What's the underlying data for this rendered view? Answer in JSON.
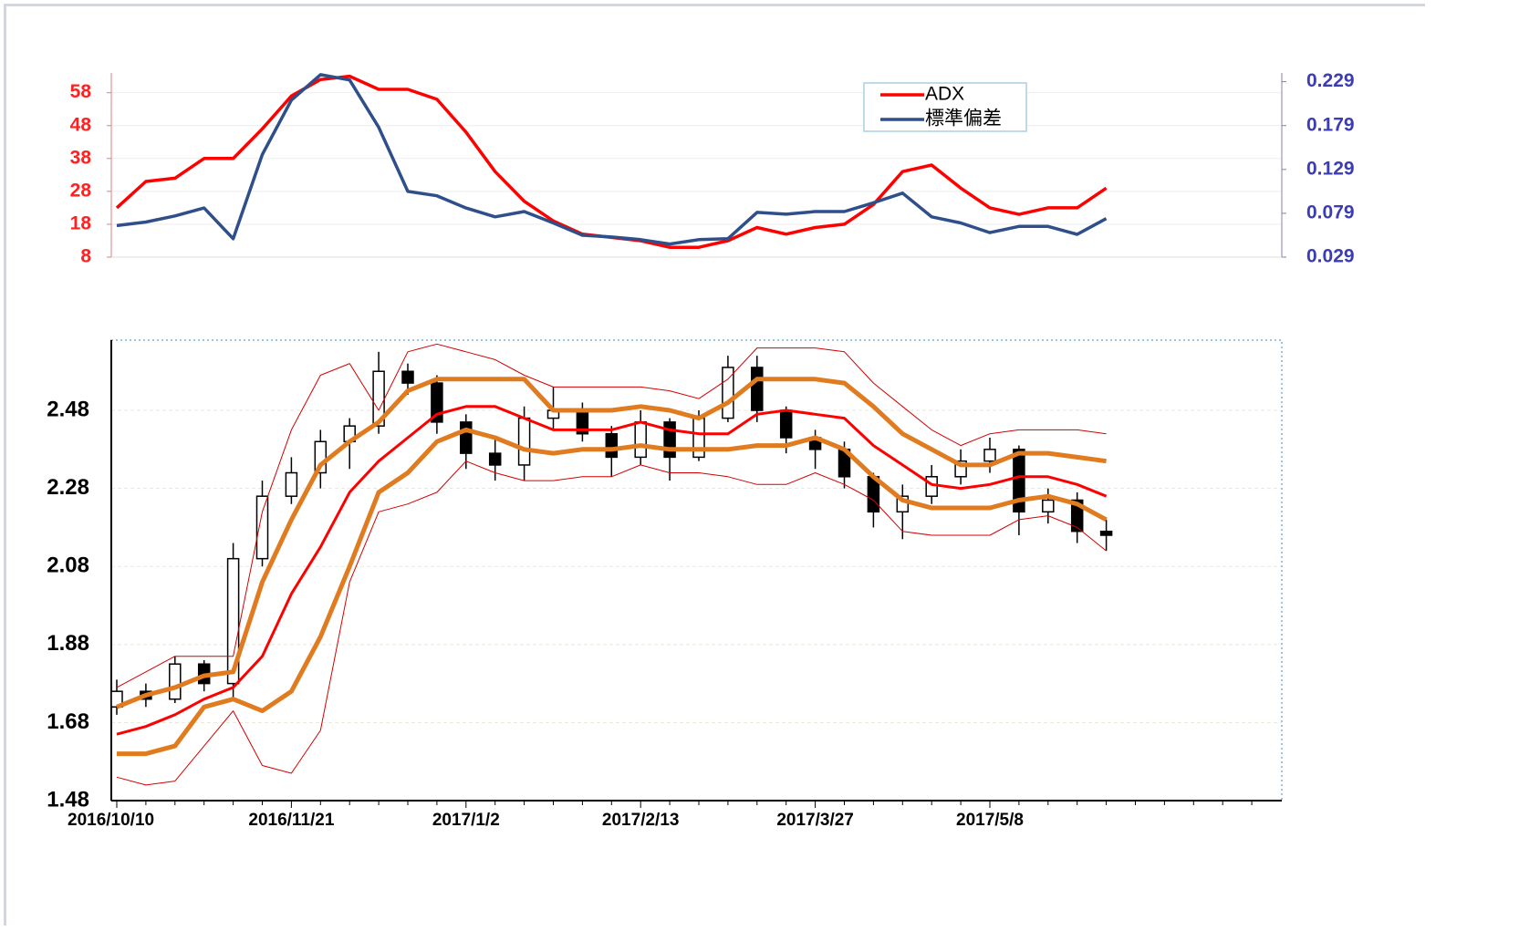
{
  "chart_data": [
    {
      "type": "line",
      "series": [
        {
          "name": "ADX",
          "color": "#ff0000",
          "axis": "y",
          "values": [
            23,
            31,
            32,
            38,
            38,
            47,
            57,
            62,
            63,
            59,
            59,
            56,
            46,
            34,
            25,
            19,
            15,
            14,
            13,
            11,
            11,
            13,
            17,
            15,
            17,
            18,
            24,
            34,
            36,
            29,
            23,
            21,
            23,
            23,
            29,
            null,
            null,
            null,
            null,
            null
          ]
        },
        {
          "name": "標準偏差",
          "color": "#2f4f8a",
          "axis": "y2",
          "values": [
            0.065,
            0.069,
            0.076,
            0.085,
            0.05,
            0.146,
            0.208,
            0.237,
            0.231,
            0.177,
            0.104,
            0.099,
            0.085,
            0.075,
            0.081,
            0.068,
            0.054,
            0.052,
            0.049,
            0.044,
            0.049,
            0.05,
            0.08,
            0.078,
            0.081,
            0.081,
            0.091,
            0.102,
            0.075,
            0.068,
            0.057,
            0.064,
            0.064,
            0.055,
            0.073,
            null,
            null,
            null,
            null,
            null
          ]
        }
      ],
      "ylim": [
        8,
        64
      ],
      "yticks": [
        8,
        18,
        28,
        38,
        48,
        58
      ],
      "y2lim": [
        0.029,
        0.239
      ],
      "y2ticks": [
        0.029,
        0.079,
        0.129,
        0.179,
        0.229
      ],
      "grid": true,
      "legend": "upper right"
    },
    {
      "type": "candlestick",
      "categories": [
        "2016/10/10",
        null,
        null,
        null,
        null,
        null,
        "2016/11/21",
        null,
        null,
        null,
        null,
        null,
        "2017/1/2",
        null,
        null,
        null,
        null,
        null,
        "2017/2/13",
        null,
        null,
        null,
        null,
        null,
        "2017/3/27",
        null,
        null,
        null,
        null,
        null,
        "2017/5/8",
        null,
        null,
        null,
        null,
        null,
        null,
        null,
        null,
        null
      ],
      "open": [
        1.72,
        1.76,
        1.74,
        1.83,
        1.78,
        2.1,
        2.26,
        2.32,
        2.4,
        2.44,
        2.58,
        2.55,
        2.45,
        2.37,
        2.34,
        2.46,
        2.48,
        2.42,
        2.36,
        2.45,
        2.36,
        2.46,
        2.59,
        2.48,
        2.41,
        2.38,
        2.31,
        2.22,
        2.26,
        2.31,
        2.35,
        2.38,
        2.22,
        2.25,
        2.17,
        null,
        null,
        null,
        null,
        null
      ],
      "high": [
        1.79,
        1.78,
        1.85,
        1.84,
        2.14,
        2.3,
        2.36,
        2.43,
        2.46,
        2.63,
        2.6,
        2.57,
        2.47,
        2.41,
        2.49,
        2.54,
        2.5,
        2.44,
        2.48,
        2.46,
        2.48,
        2.62,
        2.62,
        2.49,
        2.43,
        2.4,
        2.32,
        2.29,
        2.34,
        2.38,
        2.41,
        2.39,
        2.28,
        2.27,
        2.2,
        null,
        null,
        null,
        null,
        null
      ],
      "low": [
        1.7,
        1.72,
        1.73,
        1.76,
        1.74,
        2.08,
        2.24,
        2.28,
        2.33,
        2.42,
        2.52,
        2.42,
        2.33,
        2.3,
        2.3,
        2.43,
        2.4,
        2.31,
        2.34,
        2.3,
        2.35,
        2.45,
        2.45,
        2.37,
        2.33,
        2.28,
        2.18,
        2.15,
        2.24,
        2.29,
        2.32,
        2.16,
        2.19,
        2.14,
        2.12,
        null,
        null,
        null,
        null,
        null
      ],
      "close": [
        1.76,
        1.74,
        1.83,
        1.78,
        2.1,
        2.26,
        2.32,
        2.4,
        2.44,
        2.58,
        2.55,
        2.45,
        2.37,
        2.34,
        2.46,
        2.48,
        2.42,
        2.36,
        2.45,
        2.36,
        2.46,
        2.59,
        2.48,
        2.41,
        2.38,
        2.31,
        2.22,
        2.26,
        2.31,
        2.35,
        2.38,
        2.22,
        2.25,
        2.17,
        2.16,
        null,
        null,
        null,
        null,
        null
      ],
      "series": [
        {
          "color": "#d40000",
          "width": 1,
          "values": [
            1.77,
            1.81,
            1.85,
            1.85,
            1.85,
            2.22,
            2.43,
            2.57,
            2.6,
            2.48,
            2.63,
            2.65,
            2.63,
            2.61,
            2.57,
            2.54,
            2.54,
            2.54,
            2.54,
            2.53,
            2.51,
            2.56,
            2.64,
            2.64,
            2.64,
            2.63,
            2.55,
            2.49,
            2.43,
            2.39,
            2.42,
            2.43,
            2.43,
            2.43,
            2.42,
            null,
            null,
            null,
            null,
            null
          ]
        },
        {
          "color": "#e07b20",
          "width": 5,
          "values": [
            1.72,
            1.75,
            1.77,
            1.8,
            1.81,
            2.04,
            2.2,
            2.34,
            2.4,
            2.45,
            2.53,
            2.56,
            2.56,
            2.56,
            2.56,
            2.48,
            2.48,
            2.48,
            2.49,
            2.48,
            2.46,
            2.5,
            2.56,
            2.56,
            2.56,
            2.55,
            2.49,
            2.42,
            2.38,
            2.34,
            2.34,
            2.37,
            2.37,
            2.36,
            2.35,
            null,
            null,
            null,
            null,
            null
          ]
        },
        {
          "color": "#ff0000",
          "width": 3,
          "values": [
            1.65,
            1.67,
            1.7,
            1.74,
            1.77,
            1.85,
            2.01,
            2.13,
            2.27,
            2.35,
            2.41,
            2.47,
            2.49,
            2.49,
            2.46,
            2.43,
            2.43,
            2.43,
            2.45,
            2.43,
            2.42,
            2.42,
            2.47,
            2.48,
            2.47,
            2.46,
            2.39,
            2.34,
            2.29,
            2.28,
            2.29,
            2.31,
            2.31,
            2.29,
            2.26,
            null,
            null,
            null,
            null,
            null
          ]
        },
        {
          "color": "#e07b20",
          "width": 5,
          "values": [
            1.6,
            1.6,
            1.62,
            1.72,
            1.74,
            1.71,
            1.76,
            1.9,
            2.08,
            2.27,
            2.32,
            2.4,
            2.43,
            2.41,
            2.38,
            2.37,
            2.38,
            2.38,
            2.39,
            2.38,
            2.38,
            2.38,
            2.39,
            2.39,
            2.41,
            2.38,
            2.31,
            2.25,
            2.23,
            2.23,
            2.23,
            2.25,
            2.26,
            2.24,
            2.2,
            null,
            null,
            null,
            null,
            null
          ]
        },
        {
          "color": "#d40000",
          "width": 1,
          "values": [
            1.54,
            1.52,
            1.53,
            1.62,
            1.71,
            1.57,
            1.55,
            1.66,
            2.04,
            2.22,
            2.24,
            2.27,
            2.35,
            2.32,
            2.3,
            2.3,
            2.31,
            2.31,
            2.34,
            2.32,
            2.32,
            2.31,
            2.29,
            2.29,
            2.32,
            2.29,
            2.25,
            2.17,
            2.16,
            2.16,
            2.16,
            2.2,
            2.21,
            2.18,
            2.12,
            null,
            null,
            null,
            null,
            null
          ]
        }
      ],
      "ylim": [
        1.48,
        2.66
      ],
      "yticks": [
        1.48,
        1.68,
        1.88,
        2.08,
        2.28,
        2.48
      ],
      "grid": true
    }
  ]
}
